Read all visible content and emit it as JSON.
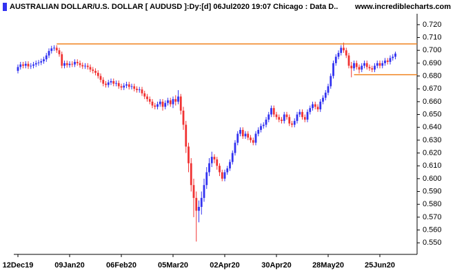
{
  "chart_data": {
    "type": "candlestick",
    "title": "AUSTRALIAN DOLLAR/U.S. DOLLAR [ AUDUSD ]:Dy:[d]  06Jul2020 19:07 Chicago : Data D..",
    "source": "www.incrediblecharts.com",
    "categories": [
      "12Dec19",
      null,
      null,
      null,
      null,
      null,
      null,
      null,
      null,
      null,
      null,
      null,
      null,
      null,
      null,
      null,
      null,
      null,
      null,
      null,
      "09Jan20",
      null,
      null,
      null,
      null,
      null,
      null,
      null,
      null,
      null,
      null,
      null,
      null,
      null,
      null,
      null,
      null,
      null,
      null,
      null,
      "06Feb20",
      null,
      null,
      null,
      null,
      null,
      null,
      null,
      null,
      null,
      null,
      null,
      null,
      null,
      null,
      null,
      null,
      null,
      null,
      null,
      "05Mar20",
      null,
      null,
      null,
      null,
      null,
      null,
      null,
      null,
      null,
      null,
      null,
      null,
      null,
      null,
      null,
      null,
      null,
      null,
      null,
      "02Apr20",
      null,
      null,
      null,
      null,
      null,
      null,
      null,
      null,
      null,
      null,
      null,
      null,
      null,
      null,
      null,
      null,
      null,
      null,
      null,
      "30Apr20",
      null,
      null,
      null,
      null,
      null,
      null,
      null,
      null,
      null,
      null,
      null,
      null,
      null,
      null,
      null,
      null,
      null,
      null,
      null,
      "28May20",
      null,
      null,
      null,
      null,
      null,
      null,
      null,
      null,
      null,
      null,
      null,
      null,
      null,
      null,
      null,
      null,
      null,
      null,
      null,
      "25Jun20",
      null,
      null,
      null,
      null,
      null,
      null
    ],
    "open": [
      0.684,
      0.687,
      0.689,
      0.688,
      0.6895,
      0.6875,
      0.688,
      0.689,
      0.69,
      0.6905,
      0.6915,
      0.693,
      0.696,
      0.6995,
      0.7015,
      0.702,
      0.7,
      0.697,
      0.688,
      0.69,
      0.6885,
      0.6895,
      0.689,
      0.691,
      0.69,
      0.6885,
      0.6875,
      0.688,
      0.687,
      0.685,
      0.684,
      0.6825,
      0.68,
      0.677,
      0.674,
      0.673,
      0.675,
      0.676,
      0.674,
      0.6745,
      0.672,
      0.671,
      0.6725,
      0.6735,
      0.6715,
      0.672,
      0.67,
      0.669,
      0.6695,
      0.6665,
      0.664,
      0.662,
      0.66,
      0.657,
      0.656,
      0.658,
      0.66,
      0.656,
      0.659,
      0.661,
      0.658,
      0.662,
      0.66,
      0.664,
      0.653,
      0.642,
      0.625,
      0.612,
      0.595,
      0.585,
      0.575,
      0.578,
      0.585,
      0.595,
      0.605,
      0.612,
      0.617,
      0.615,
      0.61,
      0.605,
      0.6,
      0.605,
      0.608,
      0.613,
      0.62,
      0.628,
      0.635,
      0.638,
      0.633,
      0.635,
      0.632,
      0.63,
      0.628,
      0.635,
      0.638,
      0.641,
      0.642,
      0.646,
      0.65,
      0.655,
      0.65,
      0.648,
      0.646,
      0.645,
      0.65,
      0.648,
      0.643,
      0.642,
      0.645,
      0.65,
      0.652,
      0.648,
      0.646,
      0.652,
      0.655,
      0.658,
      0.656,
      0.654,
      0.66,
      0.663,
      0.667,
      0.672,
      0.68,
      0.69,
      0.695,
      0.698,
      0.702,
      0.7,
      0.696,
      0.688,
      0.686,
      0.69,
      0.687,
      0.685,
      0.688,
      0.69,
      0.687,
      0.686,
      0.685,
      0.688,
      0.69,
      0.688,
      0.69,
      0.692,
      0.691,
      0.694,
      0.695
    ],
    "high": [
      0.689,
      0.691,
      0.691,
      0.6915,
      0.6915,
      0.69,
      0.691,
      0.692,
      0.6925,
      0.6935,
      0.695,
      0.698,
      0.7015,
      0.7035,
      0.704,
      0.704,
      0.702,
      0.699,
      0.692,
      0.692,
      0.6915,
      0.6915,
      0.693,
      0.693,
      0.692,
      0.6905,
      0.69,
      0.69,
      0.689,
      0.687,
      0.686,
      0.6845,
      0.682,
      0.679,
      0.676,
      0.677,
      0.678,
      0.678,
      0.6765,
      0.6765,
      0.674,
      0.6745,
      0.6755,
      0.6755,
      0.674,
      0.674,
      0.672,
      0.6715,
      0.6715,
      0.6685,
      0.666,
      0.664,
      0.662,
      0.659,
      0.66,
      0.662,
      0.662,
      0.661,
      0.663,
      0.663,
      0.664,
      0.665,
      0.669,
      0.666,
      0.656,
      0.645,
      0.628,
      0.616,
      0.6,
      0.59,
      0.583,
      0.59,
      0.6,
      0.609,
      0.616,
      0.621,
      0.619,
      0.617,
      0.612,
      0.607,
      0.607,
      0.61,
      0.615,
      0.622,
      0.63,
      0.637,
      0.64,
      0.64,
      0.637,
      0.637,
      0.634,
      0.632,
      0.637,
      0.64,
      0.643,
      0.644,
      0.648,
      0.652,
      0.657,
      0.657,
      0.652,
      0.65,
      0.648,
      0.652,
      0.652,
      0.65,
      0.645,
      0.647,
      0.652,
      0.654,
      0.654,
      0.65,
      0.654,
      0.657,
      0.66,
      0.66,
      0.658,
      0.662,
      0.665,
      0.669,
      0.674,
      0.682,
      0.692,
      0.697,
      0.7,
      0.704,
      0.706,
      0.702,
      0.698,
      0.691,
      0.692,
      0.692,
      0.689,
      0.69,
      0.692,
      0.692,
      0.689,
      0.688,
      0.69,
      0.692,
      0.692,
      0.692,
      0.694,
      0.694,
      0.696,
      0.697,
      0.699
    ],
    "low": [
      0.682,
      0.685,
      0.686,
      0.686,
      0.6855,
      0.6855,
      0.686,
      0.687,
      0.688,
      0.6885,
      0.6895,
      0.691,
      0.694,
      0.6975,
      0.6995,
      0.698,
      0.695,
      0.686,
      0.686,
      0.6865,
      0.6865,
      0.687,
      0.687,
      0.688,
      0.6865,
      0.6855,
      0.6855,
      0.685,
      0.683,
      0.682,
      0.6805,
      0.678,
      0.675,
      0.672,
      0.671,
      0.671,
      0.673,
      0.672,
      0.672,
      0.67,
      0.669,
      0.669,
      0.6705,
      0.6695,
      0.6695,
      0.668,
      0.667,
      0.667,
      0.6645,
      0.662,
      0.66,
      0.658,
      0.655,
      0.654,
      0.654,
      0.656,
      0.653,
      0.654,
      0.657,
      0.656,
      0.655,
      0.657,
      0.658,
      0.65,
      0.638,
      0.62,
      0.605,
      0.59,
      0.57,
      0.551,
      0.566,
      0.572,
      0.582,
      0.592,
      0.602,
      0.609,
      0.612,
      0.607,
      0.602,
      0.598,
      0.598,
      0.603,
      0.606,
      0.611,
      0.618,
      0.626,
      0.633,
      0.631,
      0.631,
      0.63,
      0.628,
      0.626,
      0.626,
      0.633,
      0.636,
      0.639,
      0.64,
      0.644,
      0.648,
      0.648,
      0.646,
      0.644,
      0.643,
      0.643,
      0.646,
      0.641,
      0.64,
      0.64,
      0.643,
      0.648,
      0.646,
      0.644,
      0.644,
      0.65,
      0.653,
      0.654,
      0.652,
      0.652,
      0.658,
      0.661,
      0.665,
      0.67,
      0.678,
      0.688,
      0.693,
      0.696,
      0.698,
      0.694,
      0.686,
      0.679,
      0.684,
      0.685,
      0.682,
      0.683,
      0.686,
      0.685,
      0.684,
      0.683,
      0.683,
      0.686,
      0.686,
      0.686,
      0.688,
      0.689,
      0.689,
      0.692,
      0.693
    ],
    "close": [
      0.687,
      0.689,
      0.688,
      0.6895,
      0.6875,
      0.688,
      0.689,
      0.69,
      0.6905,
      0.6915,
      0.693,
      0.696,
      0.6995,
      0.7015,
      0.702,
      0.7,
      0.697,
      0.688,
      0.69,
      0.6885,
      0.6895,
      0.689,
      0.691,
      0.69,
      0.6885,
      0.6875,
      0.688,
      0.687,
      0.685,
      0.684,
      0.6825,
      0.68,
      0.677,
      0.674,
      0.673,
      0.675,
      0.676,
      0.674,
      0.6745,
      0.672,
      0.671,
      0.6725,
      0.6735,
      0.6715,
      0.672,
      0.67,
      0.669,
      0.6695,
      0.6665,
      0.664,
      0.662,
      0.66,
      0.657,
      0.656,
      0.658,
      0.66,
      0.656,
      0.659,
      0.661,
      0.658,
      0.662,
      0.66,
      0.664,
      0.653,
      0.642,
      0.625,
      0.612,
      0.595,
      0.585,
      0.575,
      0.578,
      0.585,
      0.595,
      0.605,
      0.612,
      0.617,
      0.615,
      0.61,
      0.605,
      0.6,
      0.605,
      0.608,
      0.613,
      0.62,
      0.628,
      0.635,
      0.638,
      0.633,
      0.635,
      0.632,
      0.63,
      0.628,
      0.635,
      0.638,
      0.641,
      0.642,
      0.646,
      0.65,
      0.655,
      0.65,
      0.648,
      0.646,
      0.645,
      0.65,
      0.648,
      0.643,
      0.642,
      0.645,
      0.65,
      0.652,
      0.648,
      0.646,
      0.652,
      0.655,
      0.658,
      0.656,
      0.654,
      0.66,
      0.663,
      0.667,
      0.672,
      0.68,
      0.69,
      0.695,
      0.698,
      0.702,
      0.7,
      0.696,
      0.688,
      0.686,
      0.69,
      0.687,
      0.685,
      0.688,
      0.69,
      0.687,
      0.686,
      0.685,
      0.688,
      0.69,
      0.688,
      0.69,
      0.692,
      0.691,
      0.694,
      0.695,
      0.6975
    ],
    "up_color": "#3232f0",
    "down_color": "#f03232",
    "hlines": [
      {
        "value": 0.705,
        "start": 15,
        "color": "#f0821e"
      },
      {
        "value": 0.681,
        "start": 130,
        "color": "#f0821e"
      }
    ],
    "ylim": [
      0.541,
      0.7285
    ],
    "yticks": [
      {
        "value": 0.55,
        "label": "0.550"
      },
      {
        "value": 0.56,
        "label": "0.560"
      },
      {
        "value": 0.57,
        "label": "0.570"
      },
      {
        "value": 0.58,
        "label": "0.580"
      },
      {
        "value": 0.59,
        "label": "0.590"
      },
      {
        "value": 0.6,
        "label": "0.600"
      },
      {
        "value": 0.61,
        "label": "0.610"
      },
      {
        "value": 0.62,
        "label": "0.620"
      },
      {
        "value": 0.63,
        "label": "0.630"
      },
      {
        "value": 0.64,
        "label": "0.640"
      },
      {
        "value": 0.65,
        "label": "0.650"
      },
      {
        "value": 0.66,
        "label": "0.660"
      },
      {
        "value": 0.67,
        "label": "0.670"
      },
      {
        "value": 0.68,
        "label": "0.680"
      },
      {
        "value": 0.69,
        "label": "0.690"
      },
      {
        "value": 0.7,
        "label": "0.700"
      },
      {
        "value": 0.71,
        "label": "0.710"
      },
      {
        "value": 0.72,
        "label": "0.720"
      }
    ],
    "grid": false
  }
}
